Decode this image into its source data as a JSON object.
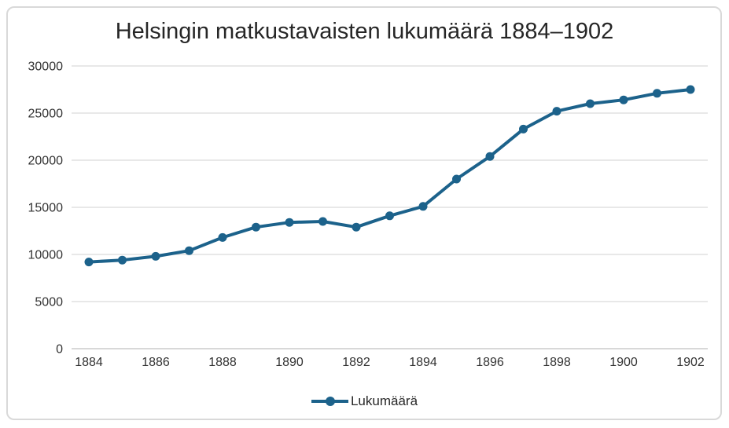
{
  "chart_data": {
    "type": "line",
    "title": "Helsingin matkustavaisten lukumäärä 1884–1902",
    "x": [
      1884,
      1885,
      1886,
      1887,
      1888,
      1889,
      1890,
      1891,
      1892,
      1893,
      1894,
      1895,
      1896,
      1897,
      1898,
      1899,
      1900,
      1901,
      1902
    ],
    "series": [
      {
        "name": "Lukumäärä",
        "values": [
          9200,
          9400,
          9800,
          10400,
          11800,
          12900,
          13400,
          13500,
          12900,
          14100,
          15100,
          18000,
          20400,
          23300,
          25200,
          26000,
          26400,
          27100,
          27500
        ]
      }
    ],
    "xlabel": "",
    "ylabel": "",
    "ylim": [
      0,
      30000
    ],
    "y_tick_labels": [
      "0",
      "5000",
      "10000",
      "15000",
      "20000",
      "25000",
      "30000"
    ],
    "x_tick_labels": [
      "1884",
      "1886",
      "1888",
      "1890",
      "1892",
      "1894",
      "1896",
      "1898",
      "1900",
      "1902"
    ],
    "grid": "horizontal",
    "legend_position": "bottom",
    "colors": {
      "series_line": "#1c628b",
      "gridline": "#d9d9d9",
      "axis_line": "#c0c0c0",
      "tick_label": "#333333",
      "title_text": "#262626",
      "frame_border": "#d9d9d9",
      "background": "#ffffff"
    }
  }
}
